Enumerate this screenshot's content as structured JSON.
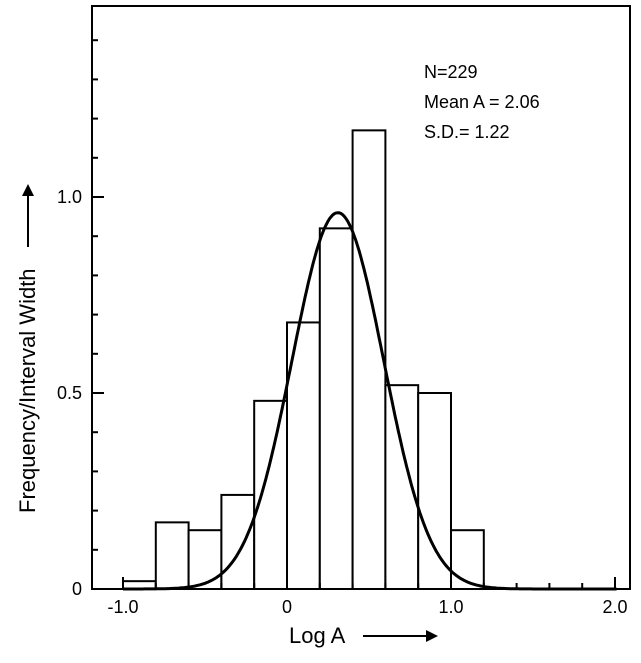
{
  "chart_data": {
    "type": "bar",
    "subtype": "histogram-with-normal-curve",
    "title": "",
    "xlabel": "Log A",
    "ylabel": "Frequency/Interval Width",
    "xlabel_arrow": "→",
    "ylabel_arrow": "→",
    "xlim": [
      -1.1,
      2.1
    ],
    "ylim": [
      0,
      1.5
    ],
    "x_ticks": [
      -1.0,
      0,
      1.0,
      2.0
    ],
    "x_tick_labels": [
      "-1.0",
      "0",
      "1.0",
      "2.0"
    ],
    "x_minor_ticks": [
      -0.8,
      -0.6,
      -0.4,
      -0.2,
      0.2,
      0.4,
      0.6,
      0.8,
      1.2,
      1.4,
      1.6,
      1.8
    ],
    "y_ticks": [
      0,
      0.5,
      1.0
    ],
    "y_tick_labels": [
      "0",
      "0.5",
      "1.0"
    ],
    "y_minor_ticks": [
      0.1,
      0.2,
      0.3,
      0.4,
      0.6,
      0.7,
      0.8,
      0.9,
      1.1,
      1.2,
      1.3,
      1.4
    ],
    "grid": false,
    "bins": [
      {
        "x0": -1.0,
        "x1": -0.8,
        "value": 0.02
      },
      {
        "x0": -0.8,
        "x1": -0.6,
        "value": 0.17
      },
      {
        "x0": -0.6,
        "x1": -0.4,
        "value": 0.15
      },
      {
        "x0": -0.4,
        "x1": -0.2,
        "value": 0.24
      },
      {
        "x0": -0.2,
        "x1": 0.0,
        "value": 0.48
      },
      {
        "x0": 0.0,
        "x1": 0.2,
        "value": 0.68
      },
      {
        "x0": 0.2,
        "x1": 0.4,
        "value": 0.92
      },
      {
        "x0": 0.4,
        "x1": 0.6,
        "value": 1.17
      },
      {
        "x0": 0.6,
        "x1": 0.8,
        "value": 0.52
      },
      {
        "x0": 0.8,
        "x1": 1.0,
        "value": 0.5
      },
      {
        "x0": 1.0,
        "x1": 1.2,
        "value": 0.15
      }
    ],
    "normal_curve": {
      "mean": 0.31,
      "sd": 0.28,
      "peak": 0.96
    },
    "annotations": [
      "N=229",
      "Mean A = 2.06",
      "S.D.= 1.22"
    ],
    "colors": {
      "axis": "#000000",
      "bar_fill": "#ffffff",
      "bar_stroke": "#000000",
      "curve": "#000000"
    }
  }
}
